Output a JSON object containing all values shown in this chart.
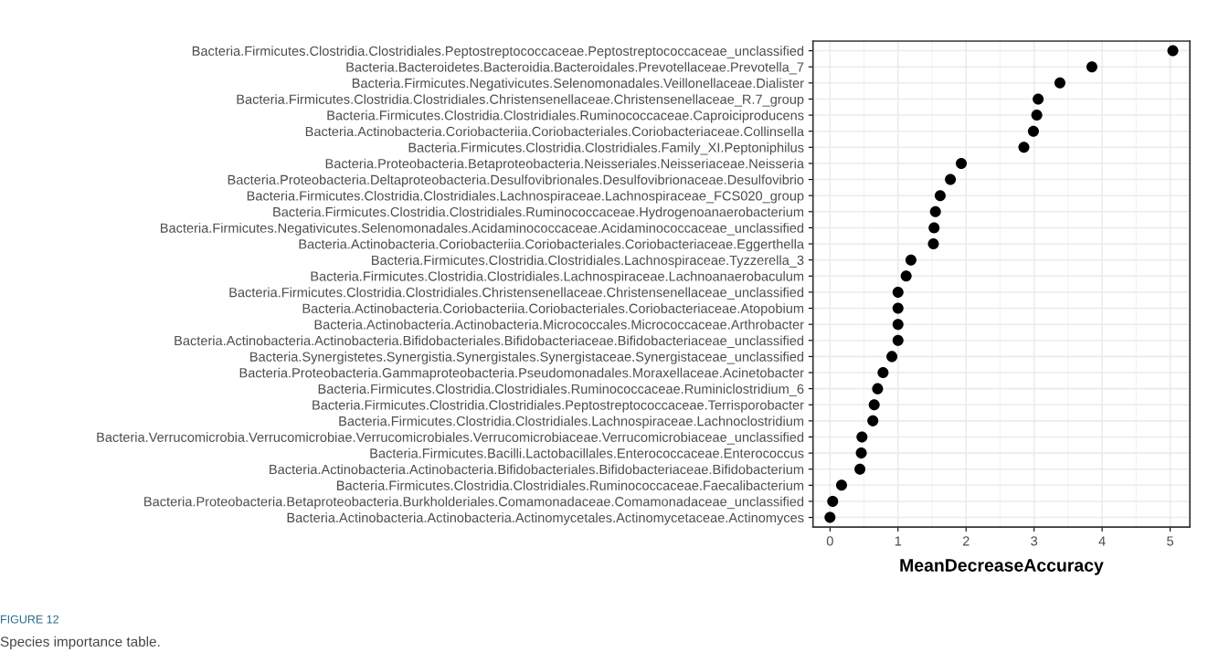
{
  "chart_data": {
    "type": "scatter",
    "xlabel": "MeanDecreaseAccuracy",
    "categories": [
      "Bacteria.Firmicutes.Clostridia.Clostridiales.Peptostreptococcaceae.Peptostreptococcaceae_unclassified",
      "Bacteria.Bacteroidetes.Bacteroidia.Bacteroidales.Prevotellaceae.Prevotella_7",
      "Bacteria.Firmicutes.Negativicutes.Selenomonadales.Veillonellaceae.Dialister",
      "Bacteria.Firmicutes.Clostridia.Clostridiales.Christensenellaceae.Christensenellaceae_R.7_group",
      "Bacteria.Firmicutes.Clostridia.Clostridiales.Ruminococcaceae.Caproiciproducens",
      "Bacteria.Actinobacteria.Coriobacteriia.Coriobacteriales.Coriobacteriaceae.Collinsella",
      "Bacteria.Firmicutes.Clostridia.Clostridiales.Family_XI.Peptoniphilus",
      "Bacteria.Proteobacteria.Betaproteobacteria.Neisseriales.Neisseriaceae.Neisseria",
      "Bacteria.Proteobacteria.Deltaproteobacteria.Desulfovibrionales.Desulfovibrionaceae.Desulfovibrio",
      "Bacteria.Firmicutes.Clostridia.Clostridiales.Lachnospiraceae.Lachnospiraceae_FCS020_group",
      "Bacteria.Firmicutes.Clostridia.Clostridiales.Ruminococcaceae.Hydrogenoanaerobacterium",
      "Bacteria.Firmicutes.Negativicutes.Selenomonadales.Acidaminococcaceae.Acidaminococcaceae_unclassified",
      "Bacteria.Actinobacteria.Coriobacteriia.Coriobacteriales.Coriobacteriaceae.Eggerthella",
      "Bacteria.Firmicutes.Clostridia.Clostridiales.Lachnospiraceae.Tyzzerella_3",
      "Bacteria.Firmicutes.Clostridia.Clostridiales.Lachnospiraceae.Lachnoanaerobaculum",
      "Bacteria.Firmicutes.Clostridia.Clostridiales.Christensenellaceae.Christensenellaceae_unclassified",
      "Bacteria.Actinobacteria.Coriobacteriia.Coriobacteriales.Coriobacteriaceae.Atopobium",
      "Bacteria.Actinobacteria.Actinobacteria.Micrococcales.Micrococcaceae.Arthrobacter",
      "Bacteria.Actinobacteria.Actinobacteria.Bifidobacteriales.Bifidobacteriaceae.Bifidobacteriaceae_unclassified",
      "Bacteria.Synergistetes.Synergistia.Synergistales.Synergistaceae.Synergistaceae_unclassified",
      "Bacteria.Proteobacteria.Gammaproteobacteria.Pseudomonadales.Moraxellaceae.Acinetobacter",
      "Bacteria.Firmicutes.Clostridia.Clostridiales.Ruminococcaceae.Ruminiclostridium_6",
      "Bacteria.Firmicutes.Clostridia.Clostridiales.Peptostreptococcaceae.Terrisporobacter",
      "Bacteria.Firmicutes.Clostridia.Clostridiales.Lachnospiraceae.Lachnoclostridium",
      "Bacteria.Verrucomicrobia.Verrucomicrobiae.Verrucomicrobiales.Verrucomicrobiaceae.Verrucomicrobiaceae_unclassified",
      "Bacteria.Firmicutes.Bacilli.Lactobacillales.Enterococcaceae.Enterococcus",
      "Bacteria.Actinobacteria.Actinobacteria.Bifidobacteriales.Bifidobacteriaceae.Bifidobacterium",
      "Bacteria.Firmicutes.Clostridia.Clostridiales.Ruminococcaceae.Faecalibacterium",
      "Bacteria.Proteobacteria.Betaproteobacteria.Burkholderiales.Comamonadaceae.Comamonadaceae_unclassified",
      "Bacteria.Actinobacteria.Actinobacteria.Actinomycetales.Actinomycetaceae.Actinomyces"
    ],
    "orientation": "horizontal",
    "values": [
      5.04,
      3.85,
      3.38,
      3.06,
      3.04,
      2.99,
      2.85,
      1.93,
      1.77,
      1.62,
      1.55,
      1.53,
      1.52,
      1.19,
      1.12,
      1.0,
      1.0,
      1.0,
      1.0,
      0.91,
      0.78,
      0.7,
      0.65,
      0.63,
      0.47,
      0.46,
      0.44,
      0.17,
      0.04,
      0.0
    ],
    "color": "#000000",
    "marker": "circle",
    "grid": true,
    "xlim": [
      -0.25,
      5.29
    ],
    "xticks": [
      0,
      1,
      2,
      3,
      4,
      5
    ],
    "annotations": [
      "FIGURE 12",
      "Species importance table."
    ]
  }
}
